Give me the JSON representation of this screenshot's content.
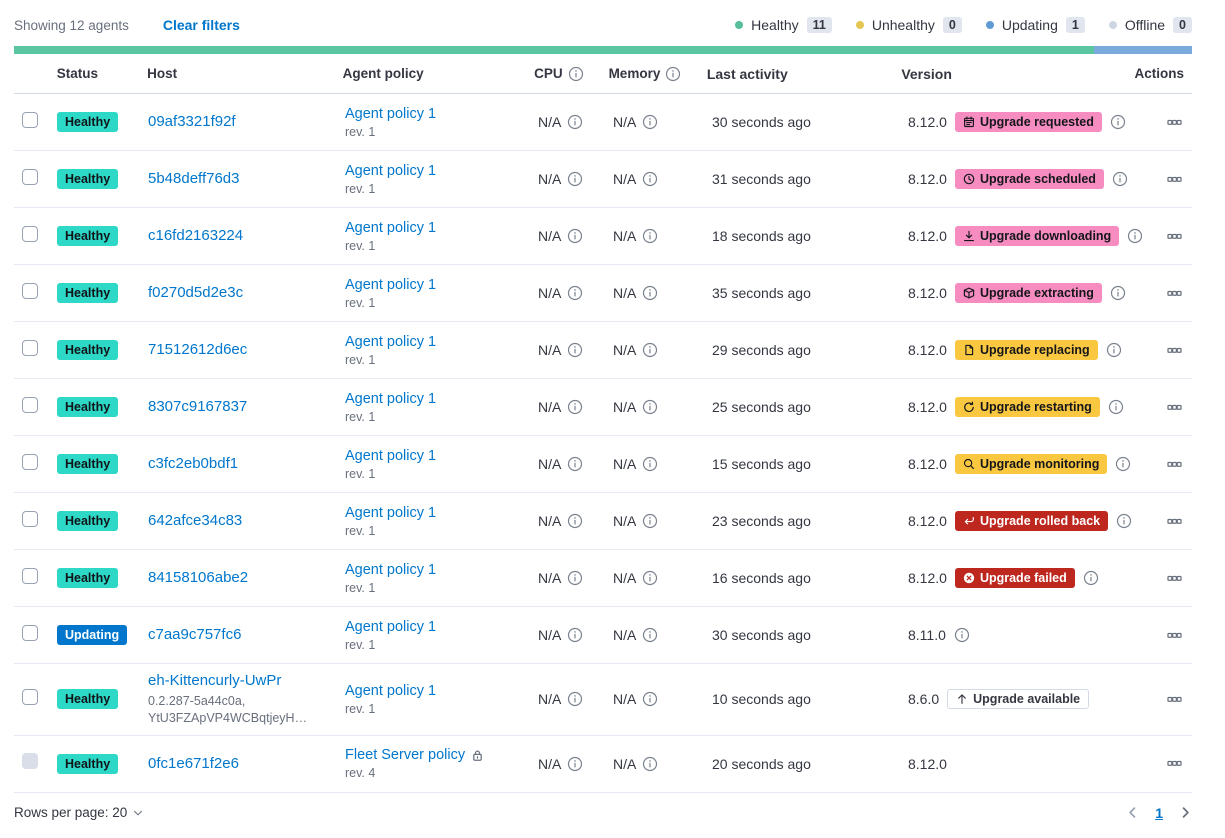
{
  "toolbar": {
    "showing_text": "Showing 12 agents",
    "clear_filters_label": "Clear filters",
    "legend": [
      {
        "label": "Healthy",
        "count": "11",
        "dot_color": "#55BE9C"
      },
      {
        "label": "Unhealthy",
        "count": "0",
        "dot_color": "#E3C752"
      },
      {
        "label": "Updating",
        "count": "1",
        "dot_color": "#5F9CD4"
      },
      {
        "label": "Offline",
        "count": "0",
        "dot_color": "#CFD6E3"
      }
    ]
  },
  "status_bar": {
    "segments": [
      {
        "name": "healthy",
        "color": "#5CC5A1",
        "weight": 11
      },
      {
        "name": "updating",
        "color": "#7AA9DC",
        "weight": 1
      }
    ]
  },
  "table": {
    "headers": {
      "status": "Status",
      "host": "Host",
      "agent_policy": "Agent policy",
      "cpu": "CPU",
      "memory": "Memory",
      "last_activity": "Last activity",
      "version": "Version",
      "actions": "Actions"
    },
    "rows": [
      {
        "status": "Healthy",
        "status_type": "healthy",
        "host": "09af3321f92f",
        "host_sub": [],
        "policy": "Agent policy 1",
        "policy_rev": "rev. 1",
        "policy_locked": false,
        "cpu": "N/A",
        "memory": "N/A",
        "last_activity": "30 seconds ago",
        "version": "8.12.0",
        "upgrade_badge": {
          "label": "Upgrade requested",
          "style": "pink",
          "icon": "calendar-icon"
        },
        "version_info_icon": true,
        "checkbox_disabled": false
      },
      {
        "status": "Healthy",
        "status_type": "healthy",
        "host": "5b48deff76d3",
        "host_sub": [],
        "policy": "Agent policy 1",
        "policy_rev": "rev. 1",
        "policy_locked": false,
        "cpu": "N/A",
        "memory": "N/A",
        "last_activity": "31 seconds ago",
        "version": "8.12.0",
        "upgrade_badge": {
          "label": "Upgrade scheduled",
          "style": "pink",
          "icon": "clock-icon"
        },
        "version_info_icon": true,
        "checkbox_disabled": false
      },
      {
        "status": "Healthy",
        "status_type": "healthy",
        "host": "c16fd2163224",
        "host_sub": [],
        "policy": "Agent policy 1",
        "policy_rev": "rev. 1",
        "policy_locked": false,
        "cpu": "N/A",
        "memory": "N/A",
        "last_activity": "18 seconds ago",
        "version": "8.12.0",
        "upgrade_badge": {
          "label": "Upgrade downloading",
          "style": "pink",
          "icon": "download-icon"
        },
        "version_info_icon": true,
        "checkbox_disabled": false
      },
      {
        "status": "Healthy",
        "status_type": "healthy",
        "host": "f0270d5d2e3c",
        "host_sub": [],
        "policy": "Agent policy 1",
        "policy_rev": "rev. 1",
        "policy_locked": false,
        "cpu": "N/A",
        "memory": "N/A",
        "last_activity": "35 seconds ago",
        "version": "8.12.0",
        "upgrade_badge": {
          "label": "Upgrade extracting",
          "style": "pink",
          "icon": "package-icon"
        },
        "version_info_icon": true,
        "checkbox_disabled": false
      },
      {
        "status": "Healthy",
        "status_type": "healthy",
        "host": "71512612d6ec",
        "host_sub": [],
        "policy": "Agent policy 1",
        "policy_rev": "rev. 1",
        "policy_locked": false,
        "cpu": "N/A",
        "memory": "N/A",
        "last_activity": "29 seconds ago",
        "version": "8.12.0",
        "upgrade_badge": {
          "label": "Upgrade replacing",
          "style": "warning",
          "icon": "document-icon"
        },
        "version_info_icon": true,
        "checkbox_disabled": false
      },
      {
        "status": "Healthy",
        "status_type": "healthy",
        "host": "8307c9167837",
        "host_sub": [],
        "policy": "Agent policy 1",
        "policy_rev": "rev. 1",
        "policy_locked": false,
        "cpu": "N/A",
        "memory": "N/A",
        "last_activity": "25 seconds ago",
        "version": "8.12.0",
        "upgrade_badge": {
          "label": "Upgrade restarting",
          "style": "warning",
          "icon": "refresh-icon"
        },
        "version_info_icon": true,
        "checkbox_disabled": false
      },
      {
        "status": "Healthy",
        "status_type": "healthy",
        "host": "c3fc2eb0bdf1",
        "host_sub": [],
        "policy": "Agent policy 1",
        "policy_rev": "rev. 1",
        "policy_locked": false,
        "cpu": "N/A",
        "memory": "N/A",
        "last_activity": "15 seconds ago",
        "version": "8.12.0",
        "upgrade_badge": {
          "label": "Upgrade monitoring",
          "style": "warning",
          "icon": "inspect-icon"
        },
        "version_info_icon": true,
        "checkbox_disabled": false
      },
      {
        "status": "Healthy",
        "status_type": "healthy",
        "host": "642afce34c83",
        "host_sub": [],
        "policy": "Agent policy 1",
        "policy_rev": "rev. 1",
        "policy_locked": false,
        "cpu": "N/A",
        "memory": "N/A",
        "last_activity": "23 seconds ago",
        "version": "8.12.0",
        "upgrade_badge": {
          "label": "Upgrade rolled back",
          "style": "danger",
          "icon": "return-left-icon"
        },
        "version_info_icon": true,
        "checkbox_disabled": false
      },
      {
        "status": "Healthy",
        "status_type": "healthy",
        "host": "84158106abe2",
        "host_sub": [],
        "policy": "Agent policy 1",
        "policy_rev": "rev. 1",
        "policy_locked": false,
        "cpu": "N/A",
        "memory": "N/A",
        "last_activity": "16 seconds ago",
        "version": "8.12.0",
        "upgrade_badge": {
          "label": "Upgrade failed",
          "style": "danger",
          "icon": "cross-in-circle-icon"
        },
        "version_info_icon": true,
        "checkbox_disabled": false
      },
      {
        "status": "Updating",
        "status_type": "updating",
        "host": "c7aa9c757fc6",
        "host_sub": [],
        "policy": "Agent policy 1",
        "policy_rev": "rev. 1",
        "policy_locked": false,
        "cpu": "N/A",
        "memory": "N/A",
        "last_activity": "30 seconds ago",
        "version": "8.11.0",
        "upgrade_badge": null,
        "version_info_icon": true,
        "checkbox_disabled": false
      },
      {
        "status": "Healthy",
        "status_type": "healthy",
        "host": "eh-Kittencurly-UwPr",
        "host_sub": [
          "0.2.287-5a44c0a,",
          "YtU3FZApVP4WCBqtjeyH…"
        ],
        "policy": "Agent policy 1",
        "policy_rev": "rev. 1",
        "policy_locked": false,
        "cpu": "N/A",
        "memory": "N/A",
        "last_activity": "10 seconds ago",
        "version": "8.6.0",
        "upgrade_badge": {
          "label": "Upgrade available",
          "style": "hollow",
          "icon": "arrow-up-icon"
        },
        "version_info_icon": false,
        "checkbox_disabled": false
      },
      {
        "status": "Healthy",
        "status_type": "healthy",
        "host": "0fc1e671f2e6",
        "host_sub": [],
        "policy": "Fleet Server policy",
        "policy_rev": "rev. 4",
        "policy_locked": true,
        "cpu": "N/A",
        "memory": "N/A",
        "last_activity": "20 seconds ago",
        "version": "8.12.0",
        "upgrade_badge": null,
        "version_info_icon": false,
        "checkbox_disabled": true
      }
    ]
  },
  "footer": {
    "rows_per_page_label": "Rows per page: 20",
    "page_number": "1"
  },
  "colors": {
    "link": "#0077CC",
    "healthy_badge": "#2DD8C6",
    "updating_badge": "#0077CC",
    "pink_badge": "#F68CC0",
    "warning_badge": "#FAC740",
    "danger_badge": "#BD271E"
  }
}
